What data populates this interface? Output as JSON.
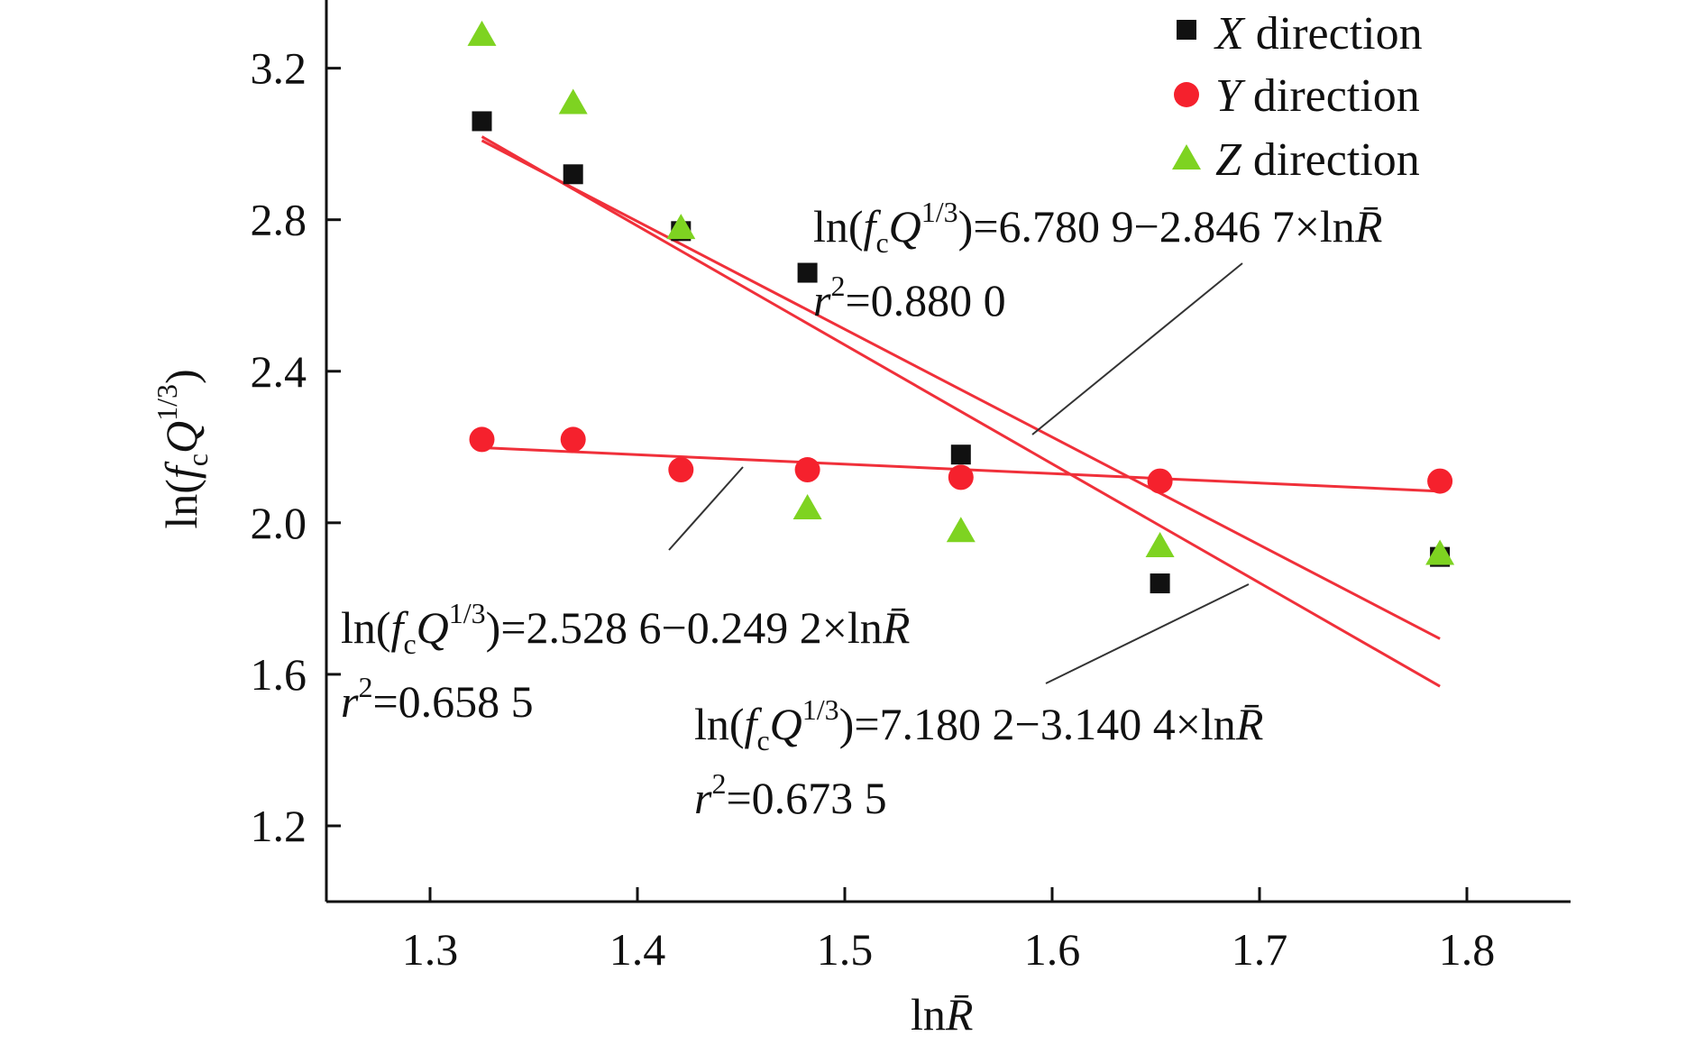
{
  "chart_data": {
    "type": "scatter",
    "xlabel": "lnR̄",
    "ylabel": "ln(fcQ1/3)",
    "xlim": [
      1.25,
      1.85
    ],
    "ylim": [
      1.0,
      3.38
    ],
    "xticks": [
      1.3,
      1.4,
      1.5,
      1.6,
      1.7,
      1.8
    ],
    "yticks": [
      1.2,
      1.6,
      2.0,
      2.4,
      2.8,
      3.2
    ],
    "xtick_labels": [
      "1.3",
      "1.4",
      "1.5",
      "1.6",
      "1.7",
      "1.8"
    ],
    "ytick_labels": [
      "1.2",
      "1.6",
      "2.0",
      "2.4",
      "2.8",
      "3.2"
    ],
    "grid": false,
    "legend_position": "top-right",
    "series": [
      {
        "name": "X direction",
        "axis_letter": "X",
        "label_suffix": " direction",
        "marker": "square",
        "color": "#111111",
        "x": [
          1.325,
          1.369,
          1.421,
          1.482,
          1.556,
          1.652,
          1.787
        ],
        "y": [
          3.06,
          2.92,
          2.77,
          2.66,
          2.18,
          1.84,
          1.91
        ]
      },
      {
        "name": "Y direction",
        "axis_letter": "Y",
        "label_suffix": " direction",
        "marker": "circle",
        "color": "#f5212d",
        "x": [
          1.325,
          1.369,
          1.421,
          1.482,
          1.556,
          1.652,
          1.787
        ],
        "y": [
          2.22,
          2.22,
          2.14,
          2.14,
          2.12,
          2.11,
          2.11
        ]
      },
      {
        "name": "Z direction",
        "axis_letter": "Z",
        "label_suffix": " direction",
        "marker": "triangle",
        "color": "#7ed321",
        "x": [
          1.325,
          1.369,
          1.421,
          1.482,
          1.556,
          1.652,
          1.787
        ],
        "y": [
          3.29,
          3.11,
          2.78,
          2.04,
          1.98,
          1.94,
          1.92
        ]
      }
    ],
    "fit_lines": [
      {
        "name": "fit-x",
        "intercept": 6.7809,
        "slope": -2.8467,
        "x_range": [
          1.325,
          1.787
        ],
        "color": "#f0303a",
        "equation_numbers": "=6.780 9−2.846 7×ln",
        "r2": "=0.880 0"
      },
      {
        "name": "fit-y",
        "intercept": 2.5286,
        "slope": -0.2492,
        "x_range": [
          1.325,
          1.787
        ],
        "color": "#f0303a",
        "equation_numbers": "=2.528 6−0.249 2×ln",
        "r2": "=0.658 5"
      },
      {
        "name": "fit-z",
        "intercept": 7.1802,
        "slope": -3.1404,
        "x_range": [
          1.325,
          1.787
        ],
        "color": "#f0303a",
        "equation_numbers": "=7.180 2−3.140 4×ln",
        "r2": "=0.673 5"
      }
    ]
  }
}
